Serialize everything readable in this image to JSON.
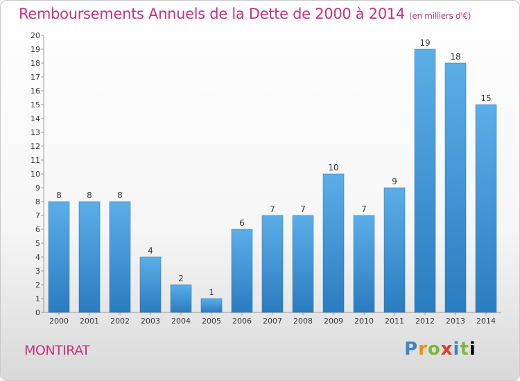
{
  "header": {
    "title": "Remboursements Annuels de la Dette de 2000 à 2014",
    "unit": "(en milliers d'€)"
  },
  "footer": {
    "commune": "MONTIRAT",
    "logo_text": "Proxiti"
  },
  "colors": {
    "title": "#c4347c",
    "bar_light": "#5caee8",
    "bar_dark": "#2a7cc0"
  },
  "chart_data": {
    "type": "bar",
    "title": "Remboursements Annuels de la Dette de 2000 à 2014",
    "subtitle": "(en milliers d'€)",
    "xlabel": "",
    "ylabel": "",
    "categories": [
      "2000",
      "2001",
      "2002",
      "2003",
      "2004",
      "2005",
      "2006",
      "2007",
      "2008",
      "2009",
      "2010",
      "2011",
      "2012",
      "2013",
      "2014"
    ],
    "values": [
      8,
      8,
      8,
      4,
      2,
      1,
      6,
      7,
      7,
      10,
      7,
      9,
      19,
      18,
      15
    ],
    "ylim": [
      0,
      20
    ],
    "yticks": [
      0,
      1,
      2,
      3,
      4,
      5,
      6,
      7,
      8,
      9,
      10,
      11,
      12,
      13,
      14,
      15,
      16,
      17,
      18,
      19,
      20
    ],
    "grid": false,
    "legend": "none",
    "data_labels": true
  }
}
